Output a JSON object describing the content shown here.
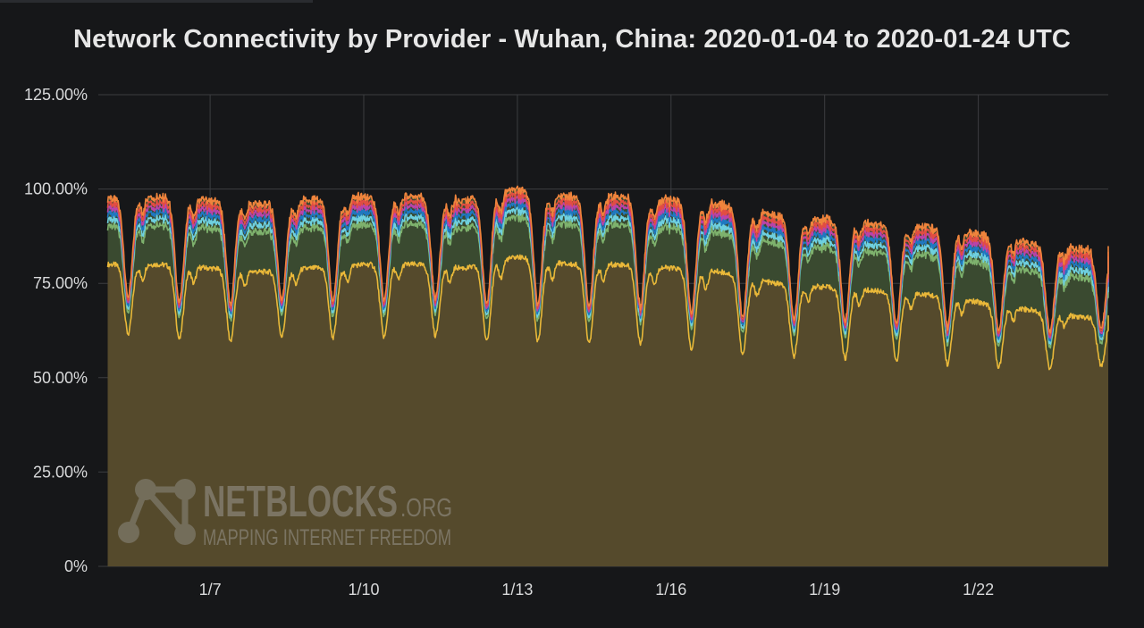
{
  "chart_data": {
    "type": "area",
    "stacked": true,
    "title": "Network Connectivity by Provider - Wuhan, China: 2020-01-04 to 2020-01-24 UTC",
    "x_range": [
      "2020-01-05",
      "2020-01-25"
    ],
    "x_ticks": [
      "1/7",
      "1/10",
      "1/13",
      "1/16",
      "1/19",
      "1/22"
    ],
    "x_tick_days": [
      7,
      10,
      13,
      16,
      19,
      22
    ],
    "y_ticks": [
      "125.00%",
      "100.00%",
      "75.00%",
      "50.00%",
      "25.00%",
      "0%"
    ],
    "y_tick_values": [
      125,
      100,
      75,
      50,
      25,
      0
    ],
    "ylim": [
      0,
      125
    ],
    "grid": true,
    "legend": "none",
    "base_series": {
      "daily_midnight_levels": [
        80,
        80,
        79,
        78,
        79,
        80,
        80,
        79,
        82,
        80,
        80,
        79,
        78,
        75,
        74,
        73,
        72,
        70,
        68,
        66
      ],
      "daily_dip_levels": [
        62,
        61,
        59,
        61,
        61,
        60,
        62,
        60,
        60,
        59,
        60,
        58,
        56,
        56,
        55,
        55,
        54,
        53,
        52,
        53
      ]
    },
    "series": [
      {
        "color": "#eab839",
        "fill": "#554a2c",
        "offset_at_peak": 0
      },
      {
        "color": "#7eb26d",
        "fill": "#3a4a30",
        "offset_at_peak": 10.5
      },
      {
        "color": "#6ed0e0",
        "fill": "#3a4a30",
        "offset_at_peak": 1.8
      },
      {
        "color": "#1f78c1",
        "fill": "#3a4a30",
        "offset_at_peak": 1.6
      },
      {
        "color": "#ba43a9",
        "fill": "#3a4a30",
        "offset_at_peak": 1.4
      },
      {
        "color": "#e24d42",
        "fill": "#3a4a30",
        "offset_at_peak": 1.2
      },
      {
        "color": "#ef843c",
        "fill": "#3a4a30",
        "offset_at_peak": 1.4
      }
    ],
    "final_levels": {
      "base": 64,
      "total": 83
    }
  },
  "watermark": {
    "brand": "NETBLOCKS",
    "suffix": ".ORG",
    "tagline": "MAPPING INTERNET FREEDOM"
  },
  "colors": {
    "background": "#161719",
    "grid": "#3c3d40",
    "tick_text": "#d8d9da",
    "title_text": "#e6e6e6"
  }
}
